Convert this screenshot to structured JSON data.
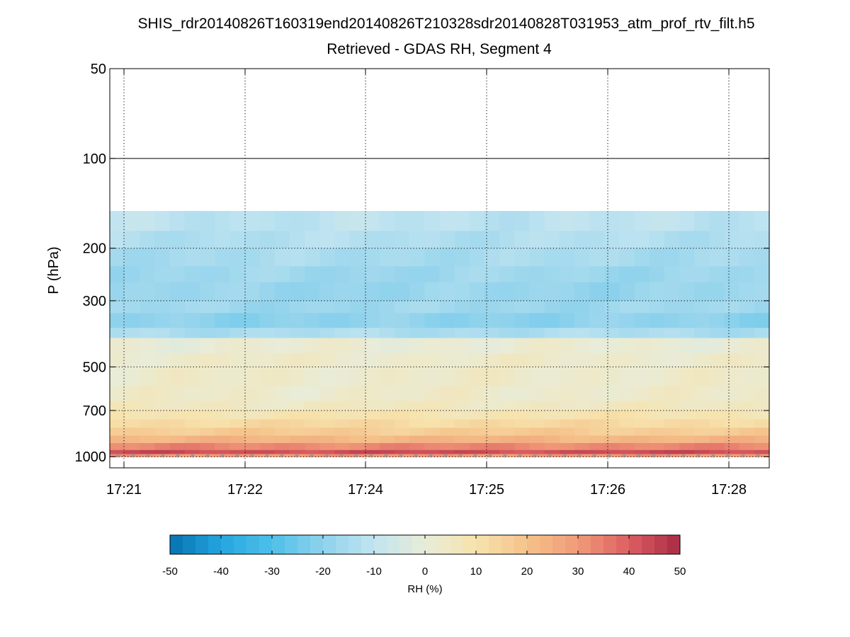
{
  "chart_data": {
    "type": "heatmap",
    "title": "SHIS_rdr20140826T160319end20140826T210328sdr20140828T031953_atm_prof_rtv_filt.h5",
    "subtitle": "Retrieved - GDAS RH, Segment 4",
    "ylabel": "P (hPa)",
    "y_scale": "log",
    "y_reversed": true,
    "ylim": [
      50,
      1000
    ],
    "y_ticks": [
      50,
      100,
      200,
      300,
      500,
      700,
      1000
    ],
    "y_tick_labels": [
      "50",
      "100",
      "200",
      "300",
      "500",
      "700",
      "1000"
    ],
    "y_grid": [
      50,
      200,
      300,
      500,
      700,
      1000
    ],
    "y_solid_line": 100,
    "x_tick_labels": [
      "17:21",
      "17:22",
      "17:24",
      "17:25",
      "17:26",
      "17:28"
    ],
    "grid": "dotted",
    "data_top_pressure": 150,
    "data_bottom_pressure": 1000,
    "columns": 44,
    "layers": [
      {
        "p": 150,
        "rh": -11
      },
      {
        "p": 175,
        "rh": -13
      },
      {
        "p": 200,
        "rh": -15
      },
      {
        "p": 230,
        "rh": -17
      },
      {
        "p": 260,
        "rh": -18
      },
      {
        "p": 300,
        "rh": -17
      },
      {
        "p": 330,
        "rh": -20
      },
      {
        "p": 370,
        "rh": -14
      },
      {
        "p": 400,
        "rh": 1
      },
      {
        "p": 450,
        "rh": 3
      },
      {
        "p": 500,
        "rh": 3
      },
      {
        "p": 580,
        "rh": 3
      },
      {
        "p": 650,
        "rh": 5
      },
      {
        "p": 700,
        "rh": 9
      },
      {
        "p": 750,
        "rh": 13
      },
      {
        "p": 800,
        "rh": 17
      },
      {
        "p": 850,
        "rh": 23
      },
      {
        "p": 900,
        "rh": 33
      },
      {
        "p": 950,
        "rh": 43
      },
      {
        "p": 980,
        "rh": 30
      },
      {
        "p": 1000,
        "rh": 25
      }
    ],
    "colorbar": {
      "label": "RH (%)",
      "range": [
        -50,
        50
      ],
      "ticks": [
        -50,
        -40,
        -30,
        -20,
        -10,
        0,
        10,
        20,
        30,
        40,
        50
      ],
      "tick_labels": [
        "-50",
        "-40",
        "-30",
        "-20",
        "-10",
        "0",
        "10",
        "20",
        "30",
        "40",
        "50"
      ],
      "colors": [
        "#0571b0",
        "#25a6e0",
        "#4ec0ea",
        "#8fd2ec",
        "#c1e4f0",
        "#e8ecd8",
        "#f7e3ad",
        "#f5c28a",
        "#f09a78",
        "#dc5e62",
        "#a82a44"
      ]
    },
    "marker_color": "#8a9aa0"
  }
}
